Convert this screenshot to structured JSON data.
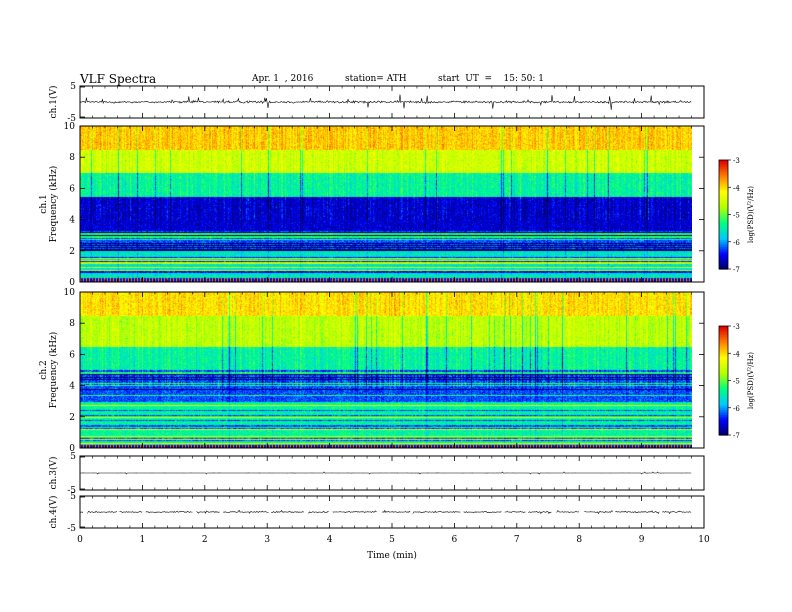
{
  "header": {
    "title": "VLF  Spectra",
    "date": "Apr. 1  , 2016",
    "station": "station= ATH",
    "start": "start  UT  =    15: 50: 1"
  },
  "colors": {
    "colormap": [
      "#00005f",
      "#0000ff",
      "#00c8ff",
      "#00ff80",
      "#b4ff00",
      "#ffff00",
      "#ff8000",
      "#e00000",
      "#ffffff"
    ]
  },
  "chart_data": [
    {
      "name": "ch.1 waveform",
      "type": "line",
      "ylabel": "ch.1(V)",
      "ylim": [
        -5,
        5
      ],
      "yticks": [
        "5",
        "-5"
      ],
      "summary": {
        "mean": 0,
        "amplitude_typical": 1.0,
        "amplitude_max": 2.5
      }
    },
    {
      "name": "ch.1 spectrogram",
      "type": "heatmap",
      "ylabel": "ch.1\nFrequency  (kHz)",
      "ylim": [
        0,
        10
      ],
      "yticks": [
        "0",
        "2",
        "4",
        "6",
        "8",
        "10"
      ],
      "colorbar": {
        "label": "log(PSD)(V²/Hz)",
        "range": [
          -7,
          -3
        ],
        "ticks": [
          "-3",
          "-4",
          "-5",
          "-6",
          "-7"
        ]
      },
      "bands_kHz": [
        [
          0,
          0.4,
          -6.5
        ],
        [
          0.4,
          2,
          -5.6
        ],
        [
          2,
          3.3,
          -6.2
        ],
        [
          3.3,
          5.5,
          -6.6
        ],
        [
          5.5,
          7,
          -5.4
        ],
        [
          7,
          8.5,
          -4.5
        ],
        [
          8.5,
          10,
          -3.9
        ]
      ]
    },
    {
      "name": "ch.2 spectrogram",
      "type": "heatmap",
      "ylabel": "ch.2\nFrequency  (kHz)",
      "ylim": [
        0,
        10
      ],
      "yticks": [
        "0",
        "2",
        "4",
        "6",
        "8",
        "10"
      ],
      "colorbar": {
        "label": "log(PSD)(V²/Hz)",
        "range": [
          -7,
          -3
        ],
        "ticks": [
          "-3",
          "-4",
          "-5",
          "-6",
          "-7"
        ]
      },
      "bands_kHz": [
        [
          0,
          0.3,
          -6.6
        ],
        [
          0.3,
          3,
          -5.4
        ],
        [
          3,
          5,
          -6.2
        ],
        [
          5,
          6.5,
          -5.4
        ],
        [
          6.5,
          8.5,
          -4.6
        ],
        [
          8.5,
          10,
          -4.0
        ]
      ]
    },
    {
      "name": "ch.3 waveform",
      "type": "line",
      "ylabel": "ch.3(V)",
      "ylim": [
        -5,
        5
      ],
      "yticks": [
        "5",
        "-5"
      ],
      "summary": {
        "mean": 0,
        "amplitude_typical": 0.05
      }
    },
    {
      "name": "ch.4 waveform",
      "type": "line",
      "ylabel": "ch.4(V)",
      "ylim": [
        -5,
        5
      ],
      "yticks": [
        "5",
        "-5"
      ],
      "summary": {
        "mean": 0,
        "amplitude_typical": 0.5
      }
    }
  ],
  "x_axis": {
    "label": "Time  (min)",
    "range": [
      0,
      10
    ],
    "data_end": 9.8,
    "ticks": [
      "0",
      "1",
      "2",
      "3",
      "4",
      "5",
      "6",
      "7",
      "8",
      "9",
      "10"
    ]
  }
}
